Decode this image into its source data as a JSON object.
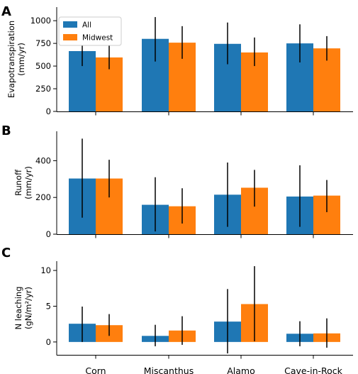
{
  "chart_data": [
    {
      "panel": "A",
      "type": "bar",
      "ylabel": "Evapotranspiration\n(mm/yr)",
      "categories": [
        "Corn",
        "Miscanthus",
        "Alamo",
        "Cave-in-Rock"
      ],
      "yticks": [
        0,
        250,
        500,
        750,
        1000
      ],
      "ylim": [
        0,
        1150
      ],
      "legend": {
        "position": "top-left"
      },
      "series": [
        {
          "name": "All",
          "color": "#1f77b4",
          "values": [
            665,
            800,
            745,
            750
          ],
          "err_low": [
            500,
            550,
            520,
            540
          ],
          "err_high": [
            830,
            1040,
            980,
            960
          ]
        },
        {
          "name": "Midwest",
          "color": "#ff7f0e",
          "values": [
            595,
            758,
            650,
            695
          ],
          "err_low": [
            465,
            580,
            500,
            560
          ],
          "err_high": [
            730,
            940,
            815,
            830
          ]
        }
      ]
    },
    {
      "panel": "B",
      "type": "bar",
      "ylabel": "Runoff\n(mm/yr)",
      "categories": [
        "Corn",
        "Miscanthus",
        "Alamo",
        "Cave-in-Rock"
      ],
      "yticks": [
        0,
        200,
        400
      ],
      "ylim": [
        0,
        560
      ],
      "series": [
        {
          "name": "All",
          "color": "#1f77b4",
          "values": [
            303,
            160,
            215,
            205
          ],
          "err_low": [
            90,
            15,
            40,
            40
          ],
          "err_high": [
            520,
            310,
            390,
            375
          ]
        },
        {
          "name": "Midwest",
          "color": "#ff7f0e",
          "values": [
            303,
            152,
            253,
            210
          ],
          "err_low": [
            200,
            58,
            150,
            120
          ],
          "err_high": [
            405,
            250,
            350,
            295
          ]
        }
      ]
    },
    {
      "panel": "C",
      "type": "bar",
      "ylabel": "N leaching\n(gN/m²/yr)",
      "categories": [
        "Corn",
        "Miscanthus",
        "Alamo",
        "Cave-in-Rock"
      ],
      "yticks": [
        0,
        5,
        10
      ],
      "ylim": [
        -1.8,
        11.3
      ],
      "series": [
        {
          "name": "All",
          "color": "#1f77b4",
          "values": [
            2.55,
            0.85,
            2.85,
            1.15
          ],
          "err_low": [
            0.0,
            -0.6,
            -1.6,
            -0.6
          ],
          "err_high": [
            4.95,
            2.4,
            7.4,
            2.9
          ]
        },
        {
          "name": "Midwest",
          "color": "#ff7f0e",
          "values": [
            2.35,
            1.6,
            5.3,
            1.2
          ],
          "err_low": [
            0.85,
            -0.4,
            0.1,
            -0.8
          ],
          "err_high": [
            3.9,
            3.6,
            10.6,
            3.3
          ]
        }
      ]
    }
  ]
}
